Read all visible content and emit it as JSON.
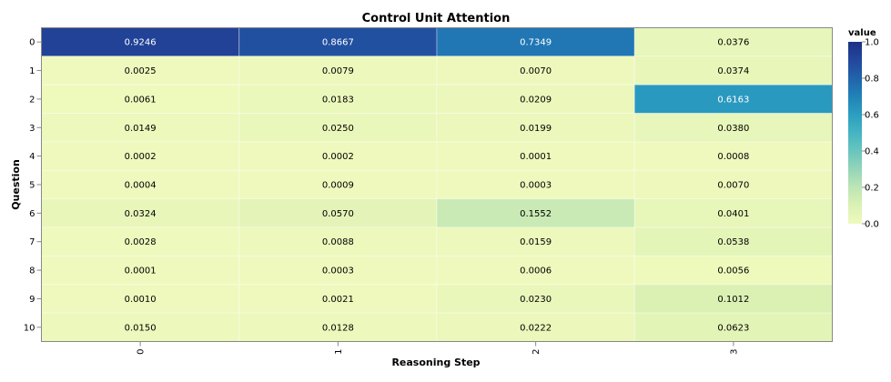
{
  "chart_data": {
    "type": "heatmap",
    "title": "Control Unit Attention",
    "xlabel": "Reasoning Step",
    "ylabel": "Question",
    "x_categories": [
      "0",
      "1",
      "2",
      "3"
    ],
    "y_categories": [
      "0",
      "1",
      "2",
      "3",
      "4",
      "5",
      "6",
      "7",
      "8",
      "9",
      "10"
    ],
    "values": [
      [
        "0.9246",
        "0.8667",
        "0.7349",
        "0.0376"
      ],
      [
        "0.0025",
        "0.0079",
        "0.0070",
        "0.0374"
      ],
      [
        "0.0061",
        "0.0183",
        "0.0209",
        "0.6163"
      ],
      [
        "0.0149",
        "0.0250",
        "0.0199",
        "0.0380"
      ],
      [
        "0.0002",
        "0.0002",
        "0.0001",
        "0.0008"
      ],
      [
        "0.0004",
        "0.0009",
        "0.0003",
        "0.0070"
      ],
      [
        "0.0324",
        "0.0570",
        "0.1552",
        "0.0401"
      ],
      [
        "0.0028",
        "0.0088",
        "0.0159",
        "0.0538"
      ],
      [
        "0.0001",
        "0.0003",
        "0.0006",
        "0.0056"
      ],
      [
        "0.0010",
        "0.0021",
        "0.0230",
        "0.1012"
      ],
      [
        "0.0150",
        "0.0128",
        "0.0222",
        "0.0623"
      ]
    ],
    "color_scale": {
      "scheme": "yellowgreenblue",
      "domain": [
        0,
        1
      ],
      "stops": [
        "#eff9bd",
        "#dbf1b4",
        "#bde5b5",
        "#94d5b9",
        "#69c5be",
        "#45b4c2",
        "#2c9ec0",
        "#2182b8",
        "#2163aa",
        "#23479c",
        "#1c3185"
      ]
    },
    "legend": {
      "title": "value",
      "position": "right",
      "ticks": [
        "0.0",
        "0.2",
        "0.4",
        "0.6",
        "0.8",
        "1.0"
      ]
    }
  }
}
